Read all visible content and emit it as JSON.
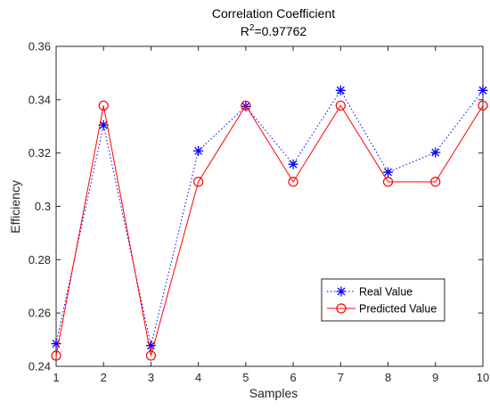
{
  "chart_data": {
    "type": "line",
    "title": "Correlation Coefficient",
    "subtitle": {
      "prefix": "R",
      "superscript": "2",
      "suffix": "=0.97762"
    },
    "xlabel": "Samples",
    "ylabel": "Efficiency",
    "xlim": [
      1,
      10
    ],
    "ylim": [
      0.24,
      0.36
    ],
    "x_ticks": [
      "1",
      "2",
      "3",
      "4",
      "5",
      "6",
      "7",
      "8",
      "9",
      "10"
    ],
    "y_ticks": [
      "0.24",
      "0.26",
      "0.28",
      "0.3",
      "0.32",
      "0.34",
      "0.36"
    ],
    "grid": false,
    "legend_position": "lower-right",
    "x": [
      1,
      2,
      3,
      4,
      5,
      6,
      7,
      8,
      9,
      10
    ],
    "series": [
      {
        "name": "Real Value",
        "color": "#0000ff",
        "line_style": "dotted",
        "marker": "asterisk",
        "values": [
          0.2485,
          0.3305,
          0.2478,
          0.3208,
          0.3375,
          0.3158,
          0.3435,
          0.3128,
          0.3202,
          0.3435
        ]
      },
      {
        "name": "Predicted Value",
        "color": "#ff0000",
        "line_style": "solid",
        "marker": "circle",
        "values": [
          0.244,
          0.3378,
          0.244,
          0.3092,
          0.3378,
          0.3092,
          0.3378,
          0.3092,
          0.3092,
          0.3378
        ]
      }
    ]
  }
}
